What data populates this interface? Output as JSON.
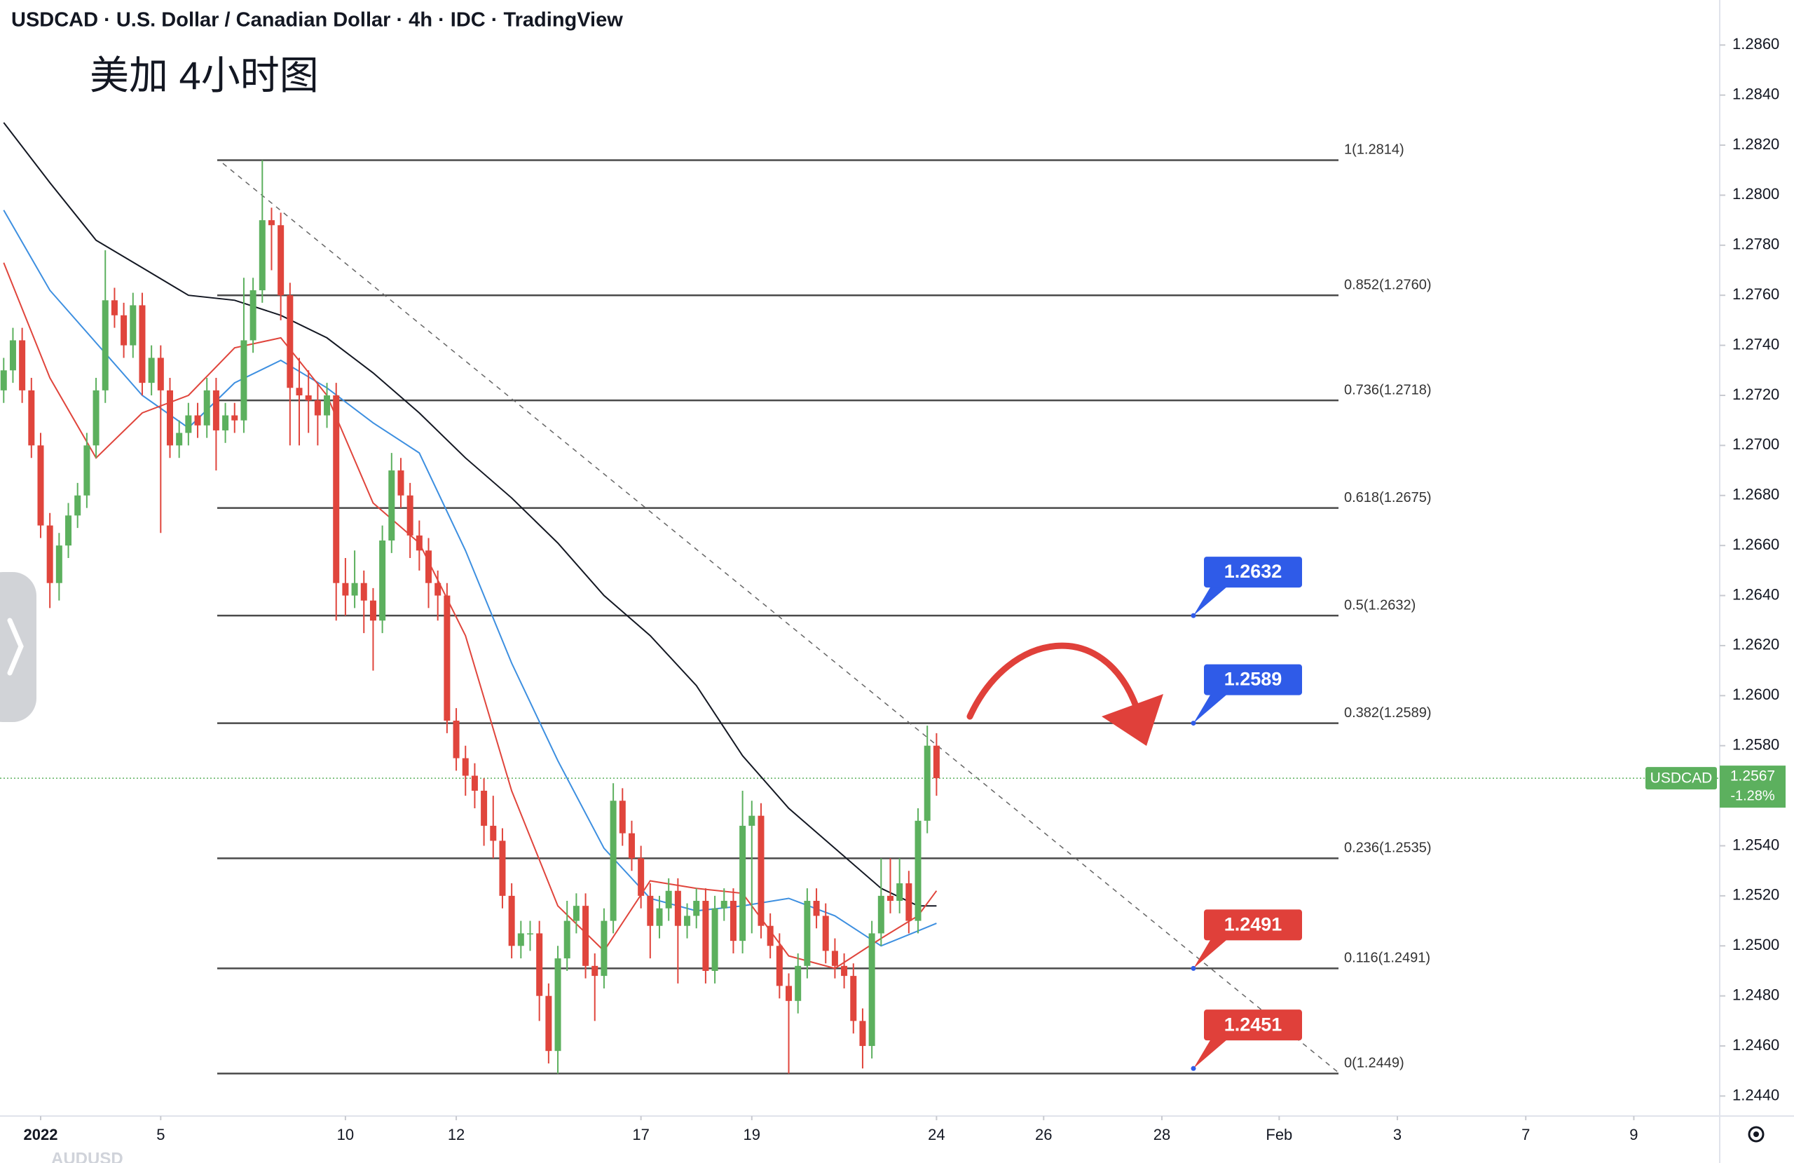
{
  "header": "USDCAD · U.S. Dollar / Canadian Dollar · 4h · IDC · TradingView",
  "annotation": "美加 4小时图",
  "footer_symbol": "AUDUSD",
  "chart_data": {
    "type": "candlestick",
    "up_color": "#5cb05e",
    "down_color": "#e0453c",
    "xlim": [
      -0.4,
      185.8
    ],
    "xticks": [
      {
        "value": 4,
        "label": "2022"
      },
      {
        "value": 17,
        "label": "5"
      },
      {
        "value": 37,
        "label": "10"
      },
      {
        "value": 49,
        "label": "12"
      },
      {
        "value": 69,
        "label": "17"
      },
      {
        "value": 81,
        "label": "19"
      },
      {
        "value": 101,
        "label": "24"
      },
      {
        "value": 112.6,
        "label": "26"
      },
      {
        "value": 125.4,
        "label": "28"
      },
      {
        "value": 138.1,
        "label": "Feb"
      },
      {
        "value": 150.9,
        "label": "3"
      },
      {
        "value": 164.8,
        "label": "7"
      },
      {
        "value": 176.5,
        "label": "9"
      }
    ],
    "ylim": [
      1.2432,
      1.2878
    ],
    "yticks": [
      {
        "value": 1.244,
        "label": "1.2440"
      },
      {
        "value": 1.246,
        "label": "1.2460"
      },
      {
        "value": 1.248,
        "label": "1.2480"
      },
      {
        "value": 1.25,
        "label": "1.2500"
      },
      {
        "value": 1.252,
        "label": "1.2520"
      },
      {
        "value": 1.254,
        "label": "1.2540"
      },
      {
        "value": 1.256,
        "label": "1.2560"
      },
      {
        "value": 1.258,
        "label": "1.2580"
      },
      {
        "value": 1.26,
        "label": "1.2600"
      },
      {
        "value": 1.262,
        "label": "1.2620"
      },
      {
        "value": 1.264,
        "label": "1.2640"
      },
      {
        "value": 1.266,
        "label": "1.2660"
      },
      {
        "value": 1.268,
        "label": "1.2680"
      },
      {
        "value": 1.27,
        "label": "1.2700"
      },
      {
        "value": 1.272,
        "label": "1.2720"
      },
      {
        "value": 1.274,
        "label": "1.2740"
      },
      {
        "value": 1.276,
        "label": "1.2760"
      },
      {
        "value": 1.278,
        "label": "1.2780"
      },
      {
        "value": 1.28,
        "label": "1.2800"
      },
      {
        "value": 1.282,
        "label": "1.2820"
      },
      {
        "value": 1.284,
        "label": "1.2840"
      },
      {
        "value": 1.286,
        "label": "1.2860"
      }
    ],
    "ohlc": [
      [
        1.2722,
        1.2735,
        1.2717,
        1.273
      ],
      [
        1.273,
        1.2747,
        1.2725,
        1.2742
      ],
      [
        1.2742,
        1.2747,
        1.2717,
        1.2722
      ],
      [
        1.2722,
        1.2727,
        1.2695,
        1.27
      ],
      [
        1.27,
        1.2705,
        1.2663,
        1.2668
      ],
      [
        1.2668,
        1.2673,
        1.2635,
        1.2645
      ],
      [
        1.2645,
        1.2665,
        1.2638,
        1.266
      ],
      [
        1.266,
        1.2677,
        1.2655,
        1.2672
      ],
      [
        1.2672,
        1.2685,
        1.2667,
        1.268
      ],
      [
        1.268,
        1.2705,
        1.2675,
        1.27
      ],
      [
        1.27,
        1.2727,
        1.2695,
        1.2722
      ],
      [
        1.2722,
        1.2778,
        1.2717,
        1.2758
      ],
      [
        1.2758,
        1.2763,
        1.2747,
        1.2752
      ],
      [
        1.2752,
        1.2757,
        1.2735,
        1.274
      ],
      [
        1.274,
        1.2761,
        1.2735,
        1.2756
      ],
      [
        1.2756,
        1.2761,
        1.272,
        1.2725
      ],
      [
        1.2725,
        1.274,
        1.272,
        1.2735
      ],
      [
        1.2735,
        1.274,
        1.2665,
        1.2722
      ],
      [
        1.2722,
        1.2727,
        1.2695,
        1.27
      ],
      [
        1.27,
        1.271,
        1.2695,
        1.2705
      ],
      [
        1.2705,
        1.2717,
        1.27,
        1.2712
      ],
      [
        1.2712,
        1.2717,
        1.2703,
        1.2708
      ],
      [
        1.2708,
        1.2727,
        1.2703,
        1.2722
      ],
      [
        1.2722,
        1.2727,
        1.269,
        1.2706
      ],
      [
        1.2706,
        1.2717,
        1.2701,
        1.2712
      ],
      [
        1.2712,
        1.2717,
        1.2705,
        1.271
      ],
      [
        1.271,
        1.2767,
        1.2705,
        1.2742
      ],
      [
        1.2742,
        1.2767,
        1.2737,
        1.2762
      ],
      [
        1.2762,
        1.2814,
        1.2757,
        1.279
      ],
      [
        1.279,
        1.2795,
        1.277,
        1.2788
      ],
      [
        1.2788,
        1.2793,
        1.275,
        1.276
      ],
      [
        1.276,
        1.2765,
        1.27,
        1.2723
      ],
      [
        1.2723,
        1.2735,
        1.27,
        1.272
      ],
      [
        1.272,
        1.273,
        1.2705,
        1.2718
      ],
      [
        1.2718,
        1.2725,
        1.27,
        1.2712
      ],
      [
        1.2712,
        1.2725,
        1.2707,
        1.272
      ],
      [
        1.272,
        1.2725,
        1.263,
        1.2645
      ],
      [
        1.2645,
        1.2655,
        1.2632,
        1.264
      ],
      [
        1.264,
        1.2658,
        1.2635,
        1.2645
      ],
      [
        1.2645,
        1.265,
        1.2625,
        1.2638
      ],
      [
        1.2638,
        1.2643,
        1.261,
        1.263
      ],
      [
        1.263,
        1.2668,
        1.2625,
        1.2662
      ],
      [
        1.2662,
        1.2697,
        1.2657,
        1.269
      ],
      [
        1.269,
        1.2695,
        1.2675,
        1.268
      ],
      [
        1.268,
        1.2685,
        1.2655,
        1.2664
      ],
      [
        1.2664,
        1.267,
        1.265,
        1.2658
      ],
      [
        1.2658,
        1.2663,
        1.2635,
        1.2645
      ],
      [
        1.2645,
        1.265,
        1.263,
        1.264
      ],
      [
        1.264,
        1.2645,
        1.2585,
        1.259
      ],
      [
        1.259,
        1.2595,
        1.257,
        1.2575
      ],
      [
        1.2575,
        1.258,
        1.256,
        1.2568
      ],
      [
        1.2568,
        1.2573,
        1.2555,
        1.2562
      ],
      [
        1.2562,
        1.2567,
        1.254,
        1.2548
      ],
      [
        1.2548,
        1.256,
        1.2535,
        1.2542
      ],
      [
        1.2542,
        1.2547,
        1.2515,
        1.252
      ],
      [
        1.252,
        1.2525,
        1.2495,
        1.25
      ],
      [
        1.25,
        1.251,
        1.2495,
        1.2505
      ],
      [
        1.2505,
        1.251,
        1.2498,
        1.2505
      ],
      [
        1.2505,
        1.251,
        1.247,
        1.248
      ],
      [
        1.248,
        1.2485,
        1.2453,
        1.2458
      ],
      [
        1.2458,
        1.25,
        1.2449,
        1.2495
      ],
      [
        1.2495,
        1.2518,
        1.249,
        1.251
      ],
      [
        1.251,
        1.2521,
        1.2505,
        1.2516
      ],
      [
        1.2516,
        1.2521,
        1.2487,
        1.2492
      ],
      [
        1.2492,
        1.2497,
        1.247,
        1.2488
      ],
      [
        1.2488,
        1.2515,
        1.2483,
        1.251
      ],
      [
        1.251,
        1.2565,
        1.2505,
        1.2558
      ],
      [
        1.2558,
        1.2563,
        1.254,
        1.2545
      ],
      [
        1.2545,
        1.255,
        1.253,
        1.2535
      ],
      [
        1.2535,
        1.254,
        1.2515,
        1.252
      ],
      [
        1.252,
        1.2525,
        1.2495,
        1.2508
      ],
      [
        1.2508,
        1.252,
        1.2503,
        1.2515
      ],
      [
        1.2515,
        1.2527,
        1.251,
        1.2522
      ],
      [
        1.2522,
        1.2527,
        1.2485,
        1.2508
      ],
      [
        1.2508,
        1.2517,
        1.2503,
        1.2512
      ],
      [
        1.2512,
        1.2523,
        1.2507,
        1.2518
      ],
      [
        1.2518,
        1.2523,
        1.2485,
        1.249
      ],
      [
        1.249,
        1.252,
        1.2485,
        1.2515
      ],
      [
        1.2515,
        1.2523,
        1.251,
        1.2518
      ],
      [
        1.2518,
        1.2523,
        1.2497,
        1.2502
      ],
      [
        1.2502,
        1.2562,
        1.2497,
        1.2548
      ],
      [
        1.2548,
        1.2558,
        1.2505,
        1.2552
      ],
      [
        1.2552,
        1.2557,
        1.2503,
        1.2508
      ],
      [
        1.2508,
        1.2513,
        1.2495,
        1.25
      ],
      [
        1.25,
        1.2505,
        1.2479,
        1.2484
      ],
      [
        1.2484,
        1.2489,
        1.2449,
        1.2478
      ],
      [
        1.2478,
        1.2497,
        1.2473,
        1.2492
      ],
      [
        1.2492,
        1.2523,
        1.2487,
        1.2518
      ],
      [
        1.2518,
        1.2523,
        1.2507,
        1.2512
      ],
      [
        1.2512,
        1.2517,
        1.2493,
        1.2498
      ],
      [
        1.2498,
        1.2503,
        1.2487,
        1.2492
      ],
      [
        1.2492,
        1.2497,
        1.2483,
        1.2488
      ],
      [
        1.2488,
        1.2493,
        1.2465,
        1.247
      ],
      [
        1.247,
        1.2475,
        1.2451,
        1.246
      ],
      [
        1.246,
        1.251,
        1.2455,
        1.2505
      ],
      [
        1.2505,
        1.2535,
        1.25,
        1.252
      ],
      [
        1.252,
        1.2535,
        1.2513,
        1.2518
      ],
      [
        1.2518,
        1.2535,
        1.2513,
        1.2525
      ],
      [
        1.2525,
        1.253,
        1.2505,
        1.251
      ],
      [
        1.251,
        1.2555,
        1.2505,
        1.255
      ],
      [
        1.255,
        1.2588,
        1.2545,
        1.258
      ],
      [
        1.258,
        1.2585,
        1.256,
        1.2567
      ]
    ],
    "moving_averages": [
      {
        "color": "#131722",
        "x": [
          0,
          5,
          10,
          15,
          20,
          25,
          30,
          35,
          40,
          45,
          50,
          55,
          60,
          65,
          70,
          75,
          80,
          85,
          90,
          95,
          99,
          101
        ],
        "values": [
          1.2829,
          1.2805,
          1.2782,
          1.2771,
          1.276,
          1.2758,
          1.2752,
          1.2743,
          1.2729,
          1.2713,
          1.2695,
          1.2679,
          1.2661,
          1.264,
          1.2624,
          1.2604,
          1.2576,
          1.2555,
          1.2539,
          1.2523,
          1.2516,
          1.2516
        ]
      },
      {
        "color": "#3d8fe0",
        "x": [
          0,
          5,
          10,
          15,
          20,
          25,
          30,
          35,
          40,
          45,
          50,
          55,
          60,
          65,
          70,
          75,
          80,
          85,
          90,
          95,
          99,
          101
        ],
        "values": [
          1.2794,
          1.2762,
          1.2741,
          1.272,
          1.2707,
          1.2725,
          1.2734,
          1.2723,
          1.2709,
          1.2697,
          1.2658,
          1.2613,
          1.2574,
          1.2539,
          1.2519,
          1.2514,
          1.2516,
          1.2519,
          1.2512,
          1.25,
          1.2506,
          1.2509
        ]
      },
      {
        "color": "#e0453c",
        "x": [
          0,
          5,
          10,
          15,
          20,
          25,
          30,
          35,
          40,
          45,
          50,
          55,
          60,
          65,
          70,
          75,
          80,
          85,
          90,
          95,
          99,
          101
        ],
        "values": [
          1.2773,
          1.2727,
          1.2695,
          1.2713,
          1.272,
          1.2739,
          1.2743,
          1.272,
          1.2677,
          1.2661,
          1.2624,
          1.2562,
          1.2516,
          1.2498,
          1.2526,
          1.2523,
          1.2521,
          1.2496,
          1.2491,
          1.2503,
          1.2512,
          1.2522
        ]
      }
    ],
    "fib_levels": [
      {
        "value": 1.2814,
        "label": "1(1.2814)"
      },
      {
        "value": 1.276,
        "label": "0.852(1.2760)"
      },
      {
        "value": 1.2718,
        "label": "0.736(1.2718)"
      },
      {
        "value": 1.2675,
        "label": "0.618(1.2675)"
      },
      {
        "value": 1.2632,
        "label": "0.5(1.2632)"
      },
      {
        "value": 1.2589,
        "label": "0.382(1.2589)"
      },
      {
        "value": 1.2535,
        "label": "0.236(1.2535)"
      },
      {
        "value": 1.2491,
        "label": "0.116(1.2491)"
      },
      {
        "value": 1.2449,
        "label": "0(1.2449)"
      }
    ],
    "fib_color": "#4a4a4a",
    "price_labels": [
      {
        "value": 1.2632,
        "color": "#2f5be8"
      },
      {
        "value": 1.2589,
        "color": "#2f5be8"
      },
      {
        "value": 1.2491,
        "color": "#e0403a"
      },
      {
        "value": 1.2451,
        "color": "#e0403a"
      }
    ],
    "symbol": "USDCAD",
    "change_label": "-1.28%",
    "price_line_color": "#5cb05e"
  }
}
